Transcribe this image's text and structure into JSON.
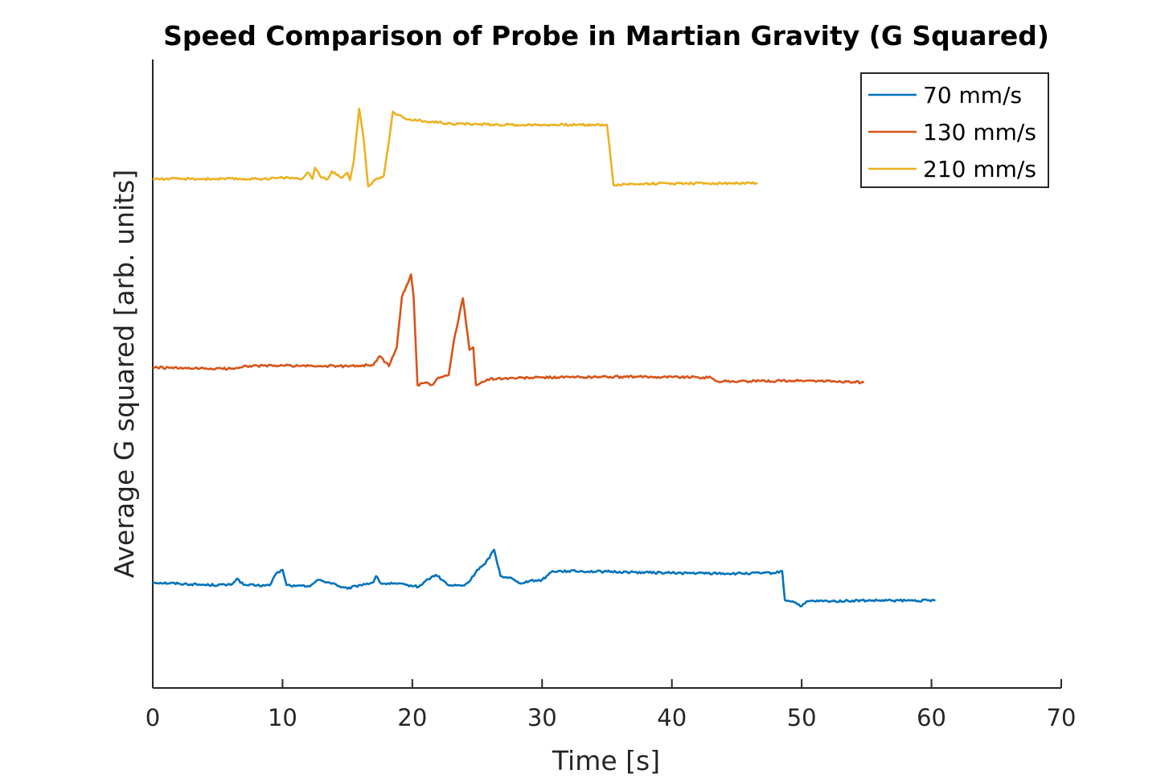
{
  "chart_data": {
    "type": "line",
    "title": "Speed Comparison of Probe in Martian Gravity (G Squared)",
    "xlabel": "Time [s]",
    "ylabel": "Average G squared [arb. units]",
    "xlim": [
      0,
      70
    ],
    "ylim": [
      0,
      10
    ],
    "xticks": [
      0,
      10,
      20,
      30,
      40,
      50,
      60,
      70
    ],
    "xtick_labels": [
      "0",
      "10",
      "20",
      "30",
      "40",
      "50",
      "60",
      "70"
    ],
    "y_tick_labels_shown": false,
    "grid": false,
    "legend_position": "top-right",
    "series": [
      {
        "name": "70 mm/s",
        "color": "#0072BD",
        "points": [
          [
            0,
            1.68
          ],
          [
            2,
            1.66
          ],
          [
            4,
            1.64
          ],
          [
            6,
            1.64
          ],
          [
            6.5,
            1.74
          ],
          [
            7,
            1.64
          ],
          [
            8,
            1.63
          ],
          [
            9,
            1.63
          ],
          [
            9.5,
            1.82
          ],
          [
            10,
            1.88
          ],
          [
            10.3,
            1.64
          ],
          [
            11,
            1.62
          ],
          [
            12,
            1.62
          ],
          [
            12.8,
            1.72
          ],
          [
            13.5,
            1.68
          ],
          [
            14,
            1.66
          ],
          [
            14.5,
            1.6
          ],
          [
            15,
            1.58
          ],
          [
            16,
            1.64
          ],
          [
            17,
            1.68
          ],
          [
            17.2,
            1.78
          ],
          [
            17.6,
            1.66
          ],
          [
            18.5,
            1.66
          ],
          [
            19.5,
            1.64
          ],
          [
            20.5,
            1.61
          ],
          [
            21,
            1.7
          ],
          [
            21.8,
            1.8
          ],
          [
            22.3,
            1.72
          ],
          [
            22.8,
            1.63
          ],
          [
            24,
            1.63
          ],
          [
            24.5,
            1.72
          ],
          [
            25,
            1.88
          ],
          [
            25.6,
            1.97
          ],
          [
            26.3,
            2.2
          ],
          [
            26.8,
            1.78
          ],
          [
            27.5,
            1.76
          ],
          [
            28.2,
            1.67
          ],
          [
            29,
            1.7
          ],
          [
            30,
            1.72
          ],
          [
            30.8,
            1.86
          ],
          [
            32,
            1.86
          ],
          [
            35,
            1.85
          ],
          [
            40,
            1.83
          ],
          [
            45,
            1.82
          ],
          [
            48,
            1.83
          ],
          [
            48.5,
            1.86
          ],
          [
            48.7,
            1.4
          ],
          [
            49.3,
            1.38
          ],
          [
            50,
            1.3
          ],
          [
            50.5,
            1.38
          ],
          [
            52,
            1.38
          ],
          [
            55,
            1.39
          ],
          [
            58,
            1.39
          ],
          [
            60.3,
            1.39
          ]
        ]
      },
      {
        "name": "130 mm/s",
        "color": "#D95319",
        "points": [
          [
            0,
            5.1
          ],
          [
            3,
            5.08
          ],
          [
            6,
            5.08
          ],
          [
            7,
            5.12
          ],
          [
            10,
            5.13
          ],
          [
            13,
            5.12
          ],
          [
            15,
            5.12
          ],
          [
            17,
            5.14
          ],
          [
            17.5,
            5.28
          ],
          [
            18.2,
            5.12
          ],
          [
            18.8,
            5.42
          ],
          [
            19.2,
            6.22
          ],
          [
            19.9,
            6.58
          ],
          [
            20.1,
            6.22
          ],
          [
            20.4,
            4.82
          ],
          [
            21,
            4.86
          ],
          [
            21.5,
            4.82
          ],
          [
            22,
            4.94
          ],
          [
            22.8,
            4.98
          ],
          [
            23.2,
            5.52
          ],
          [
            23.9,
            6.2
          ],
          [
            24.4,
            5.38
          ],
          [
            24.7,
            5.42
          ],
          [
            24.9,
            4.82
          ],
          [
            26,
            4.92
          ],
          [
            30,
            4.94
          ],
          [
            35,
            4.95
          ],
          [
            40,
            4.95
          ],
          [
            43,
            4.94
          ],
          [
            43.5,
            4.88
          ],
          [
            46,
            4.88
          ],
          [
            50,
            4.89
          ],
          [
            54,
            4.87
          ],
          [
            54.8,
            4.86
          ]
        ]
      },
      {
        "name": "210 mm/s",
        "color": "#EDB120",
        "points": [
          [
            0,
            8.1
          ],
          [
            4,
            8.1
          ],
          [
            8,
            8.1
          ],
          [
            10.5,
            8.12
          ],
          [
            11.5,
            8.1
          ],
          [
            12,
            8.2
          ],
          [
            12.3,
            8.1
          ],
          [
            12.5,
            8.28
          ],
          [
            13,
            8.12
          ],
          [
            13.5,
            8.1
          ],
          [
            13.8,
            8.22
          ],
          [
            14.5,
            8.12
          ],
          [
            15,
            8.2
          ],
          [
            15.2,
            8.08
          ],
          [
            15.5,
            8.4
          ],
          [
            15.9,
            9.22
          ],
          [
            16.2,
            8.82
          ],
          [
            16.6,
            7.98
          ],
          [
            17.2,
            8.1
          ],
          [
            17.8,
            8.15
          ],
          [
            18.2,
            8.7
          ],
          [
            18.5,
            9.17
          ],
          [
            19.5,
            9.05
          ],
          [
            21,
            9.02
          ],
          [
            23,
            8.98
          ],
          [
            25,
            8.97
          ],
          [
            28,
            8.96
          ],
          [
            31,
            8.96
          ],
          [
            34,
            8.96
          ],
          [
            35,
            8.96
          ],
          [
            35.2,
            8.6
          ],
          [
            35.5,
            8.0
          ],
          [
            37,
            8.02
          ],
          [
            40,
            8.03
          ],
          [
            44,
            8.03
          ],
          [
            46.6,
            8.03
          ]
        ]
      }
    ]
  }
}
